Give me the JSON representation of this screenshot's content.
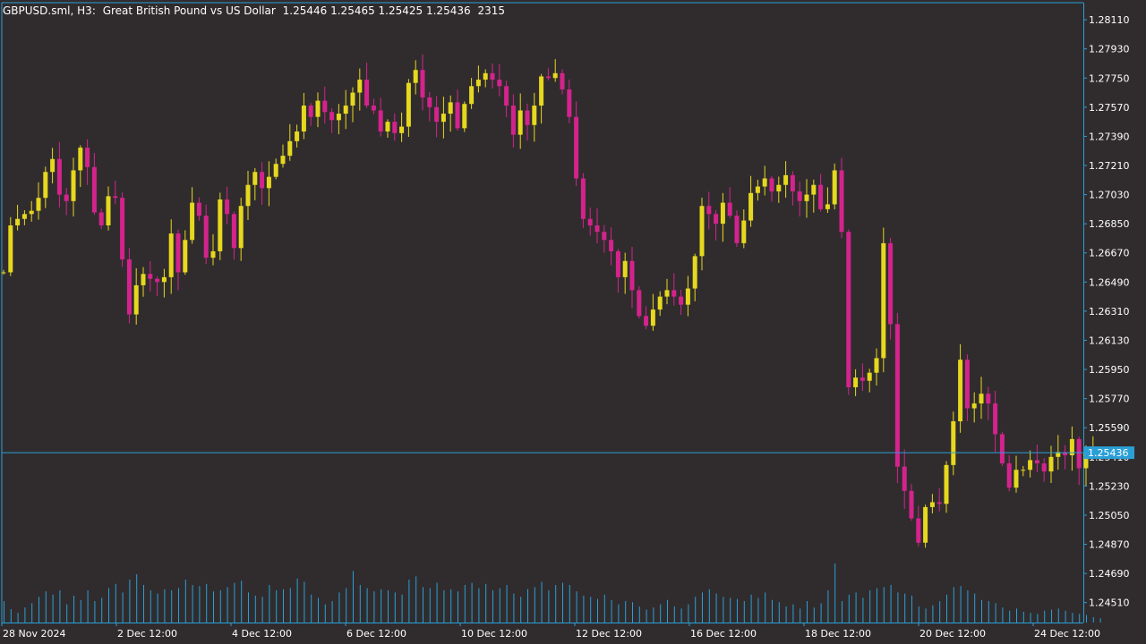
{
  "header": {
    "symbol": "GBPUSD.sml",
    "timeframe": "H3:",
    "description": "Great British Pound vs US Dollar",
    "ohlc": "1.25446 1.25465 1.25425 1.25436",
    "volume": "2315"
  },
  "colors": {
    "background": "#302c2e",
    "bull": "#e6d81e",
    "bear": "#d4238c",
    "axis": "#2a9fd6",
    "volume": "#2a9fd6",
    "text": "#ffffff",
    "price_line": "#2a9fd6"
  },
  "chart_data": {
    "type": "candlestick",
    "symbol": "GBPUSD.sml",
    "timeframe": "H3",
    "ylim": [
      1.2442,
      1.2821
    ],
    "y_ticks": [
      "1.28110",
      "1.27930",
      "1.27750",
      "1.27570",
      "1.27390",
      "1.27210",
      "1.27030",
      "1.26850",
      "1.26670",
      "1.26490",
      "1.26310",
      "1.26130",
      "1.25950",
      "1.25770",
      "1.25590",
      "1.25410",
      "1.25230",
      "1.25050",
      "1.24870",
      "1.24690",
      "1.24510"
    ],
    "x_ticks": [
      "28 Nov 2024",
      "2 Dec 12:00",
      "4 Dec 12:00",
      "6 Dec 12:00",
      "10 Dec 12:00",
      "12 Dec 12:00",
      "16 Dec 12:00",
      "18 Dec 12:00",
      "20 Dec 12:00",
      "24 Dec 12:00"
    ],
    "current_price": "1.25436",
    "start_close": 1.2655,
    "closes": [
      1.2655,
      1.2684,
      1.2688,
      1.2691,
      1.2693,
      1.2701,
      1.2717,
      1.2725,
      1.2703,
      1.2699,
      1.2718,
      1.2732,
      1.272,
      1.2692,
      1.2684,
      1.2702,
      1.2701,
      1.2663,
      1.2629,
      1.2647,
      1.2654,
      1.2651,
      1.2649,
      1.2652,
      1.2679,
      1.2655,
      1.2675,
      1.2698,
      1.269,
      1.2664,
      1.2668,
      1.27,
      1.2691,
      1.267,
      1.2696,
      1.2709,
      1.2717,
      1.2707,
      1.2714,
      1.2722,
      1.2727,
      1.2736,
      1.2742,
      1.2758,
      1.2751,
      1.2761,
      1.2754,
      1.2749,
      1.2753,
      1.2758,
      1.2766,
      1.2774,
      1.2758,
      1.2755,
      1.2742,
      1.2748,
      1.2741,
      1.2745,
      1.2772,
      1.278,
      1.2763,
      1.2757,
      1.2748,
      1.2753,
      1.276,
      1.2744,
      1.2759,
      1.277,
      1.2774,
      1.2778,
      1.2774,
      1.277,
      1.2758,
      1.274,
      1.2755,
      1.2746,
      1.2758,
      1.2776,
      1.2775,
      1.2778,
      1.2768,
      1.2751,
      1.2713,
      1.2688,
      1.2684,
      1.268,
      1.2675,
      1.2668,
      1.2652,
      1.2662,
      1.2644,
      1.2628,
      1.2622,
      1.2632,
      1.264,
      1.2644,
      1.264,
      1.2635,
      1.2645,
      1.2665,
      1.2696,
      1.2691,
      1.2685,
      1.2698,
      1.269,
      1.2673,
      1.2687,
      1.2704,
      1.2708,
      1.2713,
      1.2705,
      1.2709,
      1.2715,
      1.2705,
      1.2699,
      1.2703,
      1.2709,
      1.2694,
      1.2697,
      1.2718,
      1.268,
      1.2584,
      1.259,
      1.2588,
      1.2593,
      1.2602,
      1.2673,
      1.2623,
      1.2535,
      1.252,
      1.2503,
      1.2488,
      1.251,
      1.2513,
      1.2512,
      1.2536,
      1.2563,
      1.2601,
      1.2571,
      1.2574,
      1.258,
      1.2574,
      1.2555,
      1.2537,
      1.2522,
      1.2533,
      1.2533,
      1.2539,
      1.2537,
      1.2532,
      1.2541,
      1.2544,
      1.2542,
      1.2552,
      1.2534,
      1.2543,
      1.2545,
      1.2544
    ],
    "volumes": [
      40,
      25,
      18,
      28,
      36,
      48,
      58,
      52,
      60,
      34,
      50,
      42,
      60,
      40,
      46,
      64,
      72,
      56,
      80,
      90,
      70,
      60,
      54,
      62,
      60,
      64,
      80,
      70,
      68,
      72,
      58,
      60,
      66,
      74,
      78,
      56,
      50,
      48,
      70,
      60,
      62,
      64,
      82,
      76,
      52,
      46,
      34,
      40,
      56,
      64,
      96,
      70,
      64,
      58,
      62,
      60,
      56,
      52,
      80,
      86,
      66,
      64,
      74,
      60,
      62,
      58,
      70,
      74,
      64,
      72,
      60,
      64,
      70,
      54,
      48,
      62,
      66,
      76,
      60,
      70,
      74,
      70,
      58,
      50,
      48,
      44,
      52,
      42,
      34,
      40,
      38,
      30,
      24,
      28,
      34,
      42,
      30,
      26,
      34,
      48,
      56,
      62,
      54,
      48,
      46,
      44,
      40,
      52,
      46,
      56,
      42,
      38,
      30,
      34,
      26,
      40,
      28,
      36,
      60,
      110,
      40,
      52,
      56,
      46,
      60,
      64,
      66,
      70,
      56,
      54,
      50,
      30,
      26,
      32,
      40,
      52,
      66,
      68,
      60,
      54,
      42,
      40,
      36,
      28,
      22,
      26,
      20,
      18,
      16,
      22,
      24,
      26,
      22,
      18,
      16,
      14,
      10,
      8
    ]
  }
}
